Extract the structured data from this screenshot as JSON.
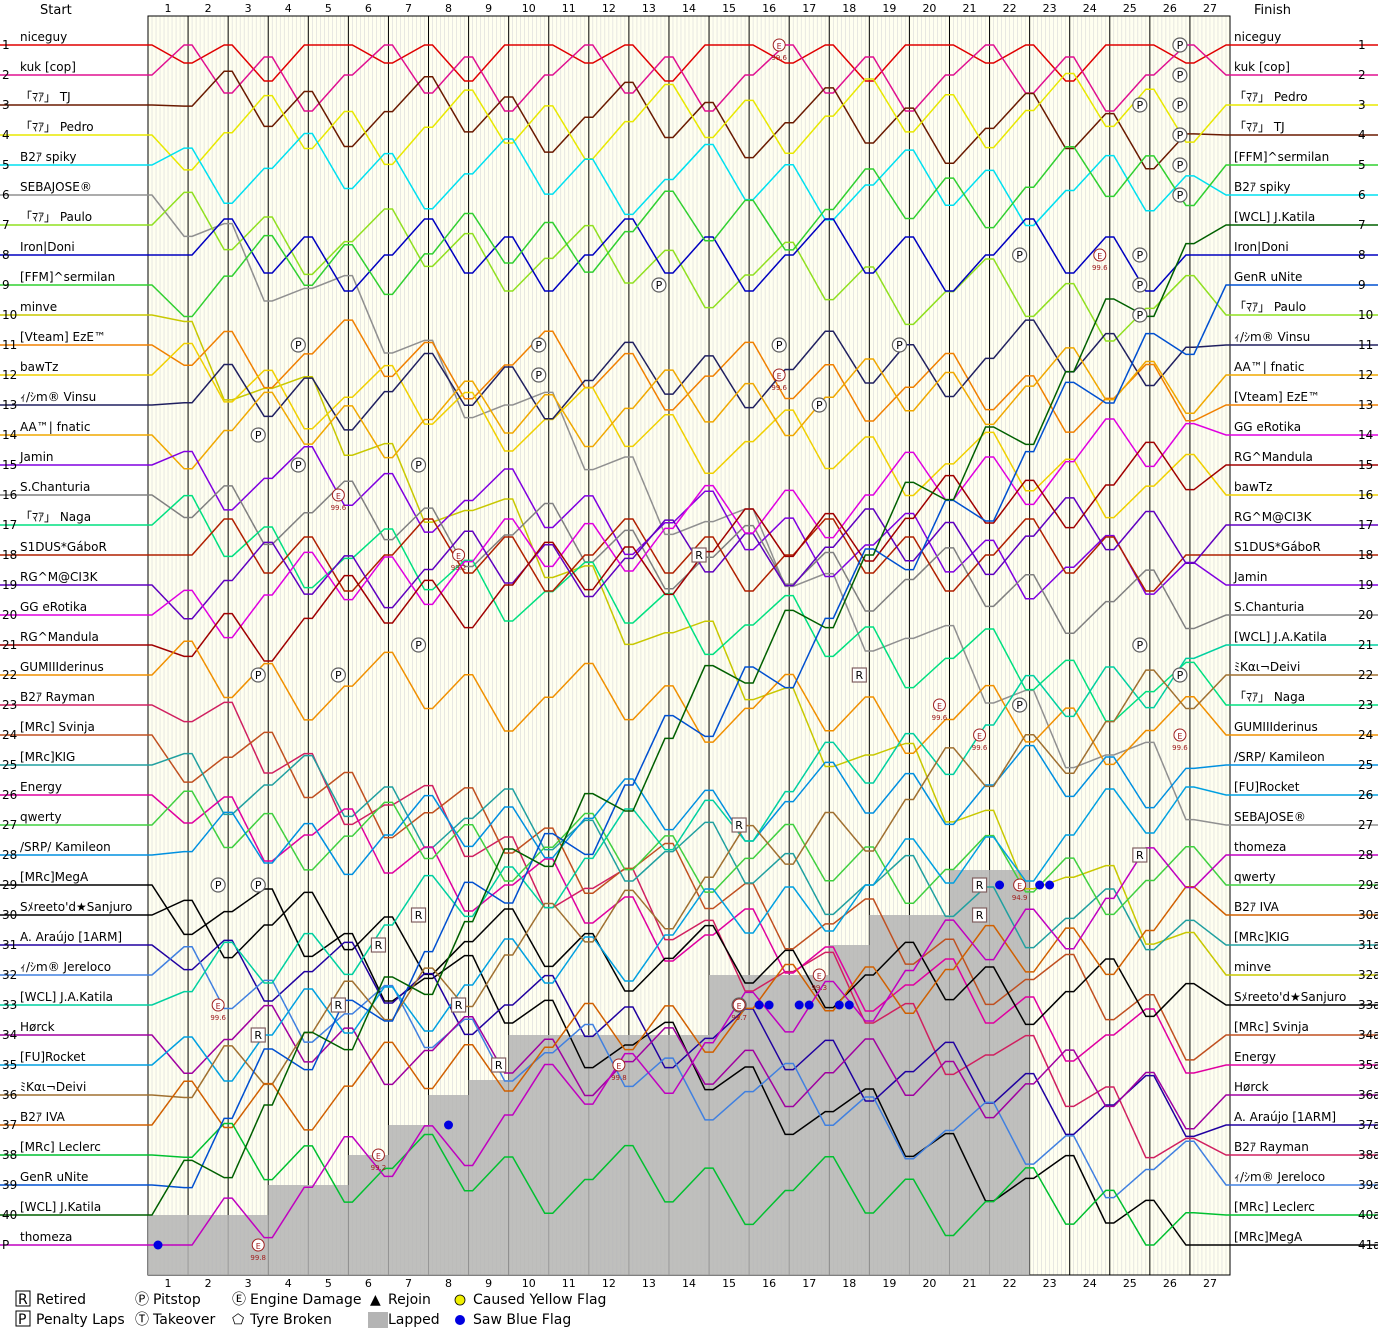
{
  "chart_data": {
    "type": "line",
    "title": "",
    "start_label": "Start",
    "finish_label": "Finish",
    "laps": [
      "1",
      "2",
      "3",
      "4",
      "5",
      "6",
      "7",
      "8",
      "9",
      "10",
      "11",
      "12",
      "13",
      "14",
      "15",
      "16",
      "17",
      "18",
      "19",
      "20",
      "21",
      "22",
      "23",
      "24",
      "25",
      "26",
      "27"
    ],
    "left_pos_labels": [
      "1",
      "2",
      "3",
      "4",
      "5",
      "6",
      "7",
      "8",
      "9",
      "10",
      "11",
      "12",
      "13",
      "14",
      "15",
      "16",
      "17",
      "18",
      "19",
      "20",
      "21",
      "22",
      "23",
      "24",
      "25",
      "26",
      "27",
      "28",
      "29",
      "30",
      "31",
      "32",
      "33",
      "34",
      "35",
      "36",
      "37",
      "38",
      "39",
      "40",
      "P"
    ],
    "right_pos_labels": [
      "1",
      "2",
      "3",
      "4",
      "5",
      "6",
      "7",
      "8",
      "9",
      "10",
      "11",
      "12",
      "13",
      "14",
      "15",
      "16",
      "17",
      "18",
      "19",
      "20",
      "21",
      "22",
      "23",
      "24",
      "25",
      "26",
      "27",
      "28",
      "29a",
      "30a",
      "31a",
      "32a",
      "33a",
      "34a",
      "35a",
      "36a",
      "37a",
      "38a",
      "39a",
      "40a",
      "41a"
    ],
    "start_grid": [
      "niceguy",
      "kuk [cop]",
      "「ﾏｱ」 TJ",
      "「ﾏｱ」 Pedro",
      "B2ｱ spiky",
      "SEBAJOSE®",
      "「ﾏｱ」 Paulo",
      "Iron|Doni",
      "[FFM]^sermilan",
      "minve",
      "[Vteam] EzE™",
      "bawTz",
      "ｨ/ｼm® Vinsu",
      "AA™| fnatic",
      "Jamin",
      "S.Chanturia",
      "「ﾏｱ」 Naga",
      "S1DUS*GáboR",
      "RG^M@CI3K",
      "GG eRotika",
      "RG^Mandula",
      "GUMIIIderinus",
      "B2ｱ Rayman",
      "[MRc] Svinja",
      "[MRc]KIG",
      "Energy",
      "qwerty",
      "/SRP/ Kamileon",
      "[MRc]MegA",
      "Sﾒreeto'd★Sanjuro",
      "A. Araújo [1ARM]",
      "ｨ/ｼm® Jereloco",
      "[WCL] J.A.Katila",
      "Hørck",
      "[FU]Rocket",
      "ﾐKαι¬Deivi",
      "B2ｱ IVA",
      "[MRc] Leclerc",
      "GenR uNite",
      "[WCL] J.Katila",
      "thomeza"
    ],
    "finish_order": [
      "niceguy",
      "kuk [cop]",
      "「ﾏｱ」 Pedro",
      "「ﾏｱ」 TJ",
      "[FFM]^sermilan",
      "B2ｱ spiky",
      "[WCL] J.Katila",
      "Iron|Doni",
      "GenR uNite",
      "「ﾏｱ」 Paulo",
      "ｨ/ｼm® Vinsu",
      "AA™| fnatic",
      "[Vteam] EzE™",
      "GG eRotika",
      "RG^Mandula",
      "bawTz",
      "RG^M@CI3K",
      "S1DUS*GáboR",
      "Jamin",
      "S.Chanturia",
      "[WCL] J.A.Katila",
      "ﾐKαι¬Deivi",
      "「ﾏｱ」 Naga",
      "GUMIIIderinus",
      "/SRP/ Kamileon",
      "[FU]Rocket",
      "SEBAJOSE®",
      "thomeza",
      "qwerty",
      "B2ｱ IVA",
      "[MRc]KIG",
      "minve",
      "Sﾒreeto'd★Sanjuro",
      "[MRc] Svinja",
      "Energy",
      "Hørck",
      "A. Araújo [1ARM]",
      "B2ｱ Rayman",
      "ｨ/ｼm® Jereloco",
      "[MRc] Leclerc",
      "[MRc]MegA"
    ],
    "colors": [
      "#e00000",
      "#e01090",
      "#6a1a00",
      "#e8e800",
      "#00e0f0",
      "#909090",
      "#90e020",
      "#0000c0",
      "#30d030",
      "#c8c800",
      "#f08000",
      "#f0d000",
      "#202060",
      "#f0a800",
      "#8000e0",
      "#808080",
      "#00e080",
      "#b02000",
      "#6000c0",
      "#e000e0",
      "#a00000",
      "#f09000",
      "#d02060",
      "#c05020",
      "#20a0a0",
      "#e000a0",
      "#40d040",
      "#0090e0",
      "#000000",
      "#000000",
      "#2000a0",
      "#4080e0",
      "#00d0a0",
      "#a000a0",
      "#00a0e0",
      "#a07030",
      "#d06000",
      "#00c030",
      "#0050d0",
      "#006000",
      "#c000c0"
    ],
    "pitstops": [
      {
        "lap": "26",
        "pos": "1",
        "marker": "P"
      },
      {
        "lap": "26",
        "pos": "2",
        "marker": "P"
      },
      {
        "lap": "26",
        "pos": "3",
        "marker": "P"
      },
      {
        "lap": "25",
        "pos": "3",
        "marker": "P"
      },
      {
        "lap": "26",
        "pos": "4",
        "marker": "P"
      },
      {
        "lap": "26",
        "pos": "5",
        "marker": "P"
      },
      {
        "lap": "26",
        "pos": "6",
        "marker": "P"
      },
      {
        "lap": "22",
        "pos": "8",
        "marker": "P"
      },
      {
        "lap": "25",
        "pos": "8",
        "marker": "P"
      },
      {
        "lap": "13",
        "pos": "9",
        "marker": "P"
      },
      {
        "lap": "25",
        "pos": "9",
        "marker": "P"
      },
      {
        "lap": "25",
        "pos": "10",
        "marker": "P"
      },
      {
        "lap": "4",
        "pos": "11",
        "marker": "P"
      },
      {
        "lap": "10",
        "pos": "11",
        "marker": "P"
      },
      {
        "lap": "16",
        "pos": "11",
        "marker": "P"
      },
      {
        "lap": "19",
        "pos": "11",
        "marker": "P"
      },
      {
        "lap": "10",
        "pos": "12",
        "marker": "P"
      },
      {
        "lap": "17",
        "pos": "13",
        "marker": "P"
      },
      {
        "lap": "3",
        "pos": "14",
        "marker": "P"
      },
      {
        "lap": "4",
        "pos": "15",
        "marker": "P"
      },
      {
        "lap": "7",
        "pos": "15",
        "marker": "P"
      },
      {
        "lap": "7",
        "pos": "21",
        "marker": "P"
      },
      {
        "lap": "25",
        "pos": "21",
        "marker": "P"
      },
      {
        "lap": "3",
        "pos": "22",
        "marker": "P"
      },
      {
        "lap": "5",
        "pos": "22",
        "marker": "P"
      },
      {
        "lap": "26",
        "pos": "22",
        "marker": "P"
      },
      {
        "lap": "22",
        "pos": "23",
        "marker": "P"
      },
      {
        "lap": "2",
        "pos": "29",
        "marker": "P"
      },
      {
        "lap": "3",
        "pos": "29",
        "marker": "P"
      },
      {
        "lap": "15",
        "pos": "33",
        "marker": "P"
      }
    ],
    "retirements": [
      {
        "lap": "18",
        "pos": "22",
        "marker": "R"
      },
      {
        "lap": "14",
        "pos": "18",
        "marker": "R"
      },
      {
        "lap": "15",
        "pos": "27",
        "marker": "R"
      },
      {
        "lap": "25",
        "pos": "28",
        "marker": "R"
      },
      {
        "lap": "21",
        "pos": "29",
        "marker": "R"
      },
      {
        "lap": "21",
        "pos": "30",
        "marker": "R"
      },
      {
        "lap": "7",
        "pos": "30",
        "marker": "R"
      },
      {
        "lap": "6",
        "pos": "31",
        "marker": "R"
      },
      {
        "lap": "5",
        "pos": "33",
        "marker": "R"
      },
      {
        "lap": "8",
        "pos": "33",
        "marker": "R"
      },
      {
        "lap": "3",
        "pos": "34",
        "marker": "R"
      },
      {
        "lap": "9",
        "pos": "35",
        "marker": "R"
      }
    ],
    "damages": [
      {
        "lap": "16",
        "pos": "1",
        "label": "99.6"
      },
      {
        "lap": "24",
        "pos": "8",
        "label": "99.6"
      },
      {
        "lap": "16",
        "pos": "12",
        "label": "99.6"
      },
      {
        "lap": "5",
        "pos": "16",
        "label": "99.6"
      },
      {
        "lap": "8",
        "pos": "18",
        "label": "99.2"
      },
      {
        "lap": "20",
        "pos": "23",
        "label": "99.6"
      },
      {
        "lap": "21",
        "pos": "24",
        "label": "99.6"
      },
      {
        "lap": "26",
        "pos": "24",
        "label": "99.6"
      },
      {
        "lap": "2",
        "pos": "33",
        "label": "99.6"
      },
      {
        "lap": "12",
        "pos": "35",
        "label": "99.8"
      },
      {
        "lap": "6",
        "pos": "38",
        "label": "99.2"
      },
      {
        "lap": "3",
        "pos": "P",
        "label": "99.8"
      },
      {
        "lap": "17",
        "pos": "32",
        "label": "99.3"
      },
      {
        "lap": "15",
        "pos": "33",
        "label": "99.7"
      },
      {
        "lap": "22",
        "pos": "29",
        "label": "94.9"
      }
    ],
    "blue_flags": [
      {
        "lap": "0",
        "pos": "P"
      },
      {
        "lap": "7",
        "pos": "37"
      },
      {
        "lap": "15",
        "pos": "33"
      },
      {
        "lap": "15",
        "pos": "33"
      },
      {
        "lap": "16",
        "pos": "33"
      },
      {
        "lap": "16",
        "pos": "33"
      },
      {
        "lap": "17",
        "pos": "33"
      },
      {
        "lap": "17",
        "pos": "33"
      },
      {
        "lap": "21",
        "pos": "29"
      },
      {
        "lap": "22",
        "pos": "29"
      },
      {
        "lap": "22",
        "pos": "29"
      }
    ],
    "lapped_profile": [
      {
        "from": 0,
        "to": 3,
        "pos": 40
      },
      {
        "from": 3,
        "to": 5,
        "pos": 39
      },
      {
        "from": 5,
        "to": 6,
        "pos": 38
      },
      {
        "from": 6,
        "to": 7,
        "pos": 37
      },
      {
        "from": 7,
        "to": 8,
        "pos": 36
      },
      {
        "from": 8,
        "to": 9,
        "pos": 35.5
      },
      {
        "from": 9,
        "to": 14,
        "pos": 34
      },
      {
        "from": 14,
        "to": 17,
        "pos": 32
      },
      {
        "from": 17,
        "to": 18,
        "pos": 31
      },
      {
        "from": 18,
        "to": 20,
        "pos": 30
      },
      {
        "from": 20,
        "to": 22,
        "pos": 28.5
      }
    ],
    "legend": [
      {
        "symbol": "R",
        "label": "Retired"
      },
      {
        "symbol": "P",
        "label": "Penalty Laps"
      },
      {
        "symbol": "Ⓟ",
        "label": "Pitstop"
      },
      {
        "symbol": "Ⓣ",
        "label": "Takeover"
      },
      {
        "symbol": "Ⓔ",
        "label": "Engine Damage"
      },
      {
        "symbol": "⬠",
        "label": "Tyre Broken"
      },
      {
        "symbol": "▲",
        "label": "Rejoin"
      },
      {
        "symbol": "■",
        "label": "Lapped"
      },
      {
        "symbol": "●",
        "label": "Caused Yellow Flag"
      },
      {
        "symbol": "●",
        "label": "Saw Blue Flag"
      }
    ],
    "colors_meta": {
      "background": "#fffff0",
      "grid_major": "#000000",
      "grid_minor": "#d8d8d8",
      "lapped_fill": "#b4b4b4",
      "yellow_flag": "#f0f000",
      "blue_flag": "#0000e0"
    }
  }
}
